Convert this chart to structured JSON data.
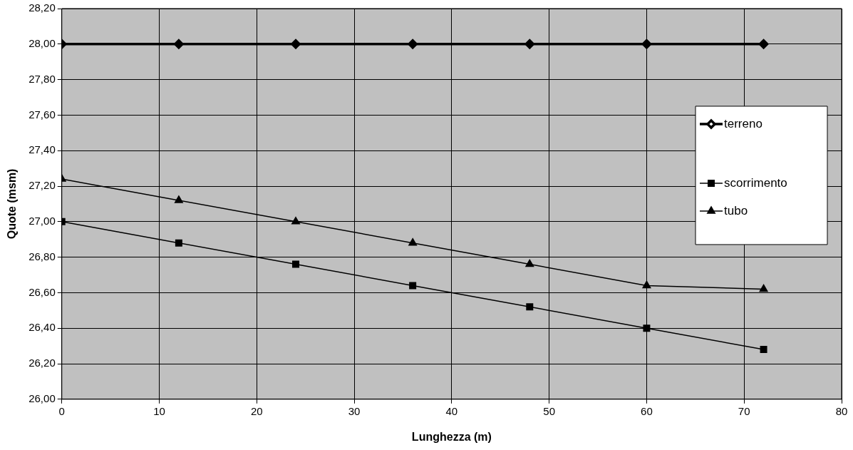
{
  "chart_data": {
    "type": "line",
    "xlabel": "Lunghezza (m)",
    "ylabel": "Quote (msm)",
    "x": [
      0,
      12,
      24,
      36,
      48,
      60,
      72
    ],
    "series": [
      {
        "name": "terreno",
        "color": "#000000",
        "marker": "diamond",
        "values": [
          28.0,
          28.0,
          28.0,
          28.0,
          28.0,
          28.0,
          28.0
        ]
      },
      {
        "name": "scorrimento",
        "color": "#000000",
        "marker": "square",
        "values": [
          27.0,
          26.88,
          26.76,
          26.64,
          26.52,
          26.4,
          26.28
        ]
      },
      {
        "name": "tubo",
        "color": "#000000",
        "marker": "triangle",
        "values": [
          27.24,
          27.12,
          27.0,
          26.88,
          26.76,
          26.64,
          26.62
        ]
      }
    ],
    "xlim": [
      0,
      80
    ],
    "xticks": [
      0,
      10,
      20,
      30,
      40,
      50,
      60,
      70,
      80
    ],
    "ylim": [
      26.0,
      28.2
    ],
    "yticks": [
      {
        "value": 26.0,
        "label": "26,00"
      },
      {
        "value": 26.2,
        "label": "26,20"
      },
      {
        "value": 26.4,
        "label": "26,40"
      },
      {
        "value": 26.6,
        "label": "26,60"
      },
      {
        "value": 26.8,
        "label": "26,80"
      },
      {
        "value": 27.0,
        "label": "27,00"
      },
      {
        "value": 27.2,
        "label": "27,20"
      },
      {
        "value": 27.4,
        "label": "27,40"
      },
      {
        "value": 27.6,
        "label": "27,60"
      },
      {
        "value": 27.8,
        "label": "27,80"
      },
      {
        "value": 28.0,
        "label": "28,00"
      },
      {
        "value": 28.2,
        "label": "28,20"
      }
    ],
    "grid": true,
    "legend": "right",
    "line_style": "solid"
  }
}
